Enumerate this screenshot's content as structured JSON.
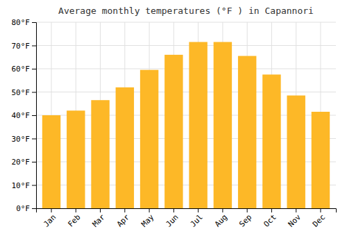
{
  "chart_data": {
    "type": "bar",
    "title": "Average monthly temperatures (°F ) in Capannori",
    "categories": [
      "Jan",
      "Feb",
      "Mar",
      "Apr",
      "May",
      "Jun",
      "Jul",
      "Aug",
      "Sep",
      "Oct",
      "Nov",
      "Dec"
    ],
    "values": [
      40,
      42,
      46.5,
      52,
      59.5,
      66,
      71.5,
      71.5,
      65.5,
      57.5,
      48.5,
      41.5
    ],
    "color": "#FDB827",
    "ylim": [
      0,
      80
    ],
    "yticks": [
      {
        "value": 0,
        "label": "0°F"
      },
      {
        "value": 10,
        "label": "10°F"
      },
      {
        "value": 20,
        "label": "20°F"
      },
      {
        "value": 30,
        "label": "30°F"
      },
      {
        "value": 40,
        "label": "40°F"
      },
      {
        "value": 50,
        "label": "50°F"
      },
      {
        "value": 60,
        "label": "60°F"
      },
      {
        "value": 70,
        "label": "70°F"
      },
      {
        "value": 80,
        "label": "80°F"
      }
    ],
    "grid": true
  }
}
